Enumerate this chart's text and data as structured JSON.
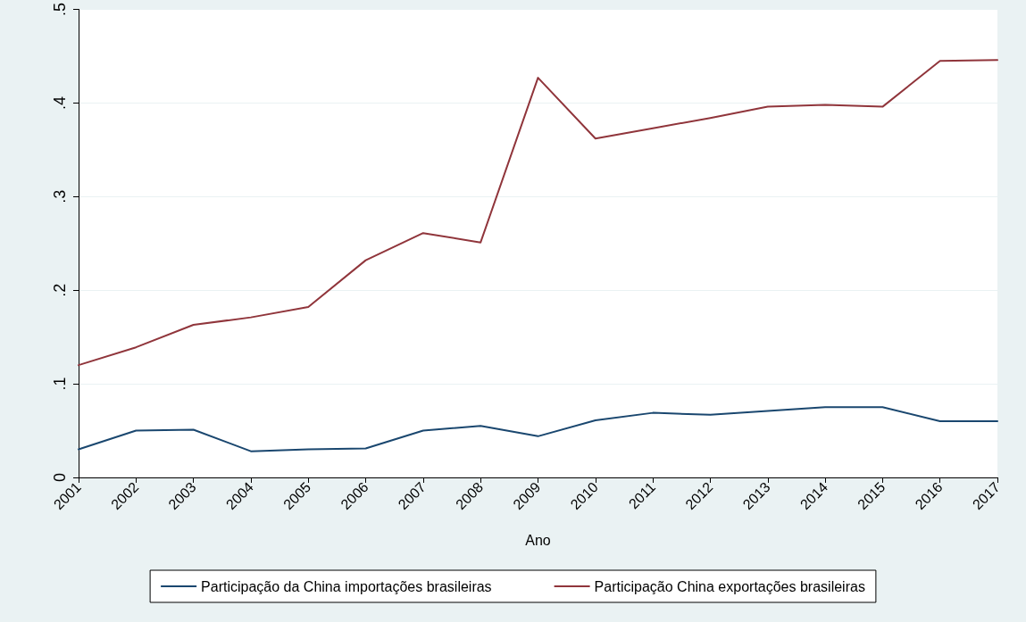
{
  "chart_data": {
    "type": "line",
    "xlabel": "Ano",
    "categories": [
      "2001",
      "2002",
      "2003",
      "2004",
      "2005",
      "2006",
      "2007",
      "2008",
      "2009",
      "2010",
      "2011",
      "2012",
      "2013",
      "2014",
      "2015",
      "2016",
      "2017"
    ],
    "series": [
      {
        "name": "Participação da China importações brasileiras",
        "color": "#1a476f",
        "values": [
          0.03,
          0.05,
          0.051,
          0.028,
          0.03,
          0.031,
          0.05,
          0.055,
          0.044,
          0.061,
          0.069,
          0.067,
          0.071,
          0.075,
          0.075,
          0.06,
          0.06
        ]
      },
      {
        "name": "Participação China exportações brasileiras",
        "color": "#90353b",
        "values": [
          0.12,
          0.139,
          0.163,
          0.171,
          0.182,
          0.232,
          0.261,
          0.251,
          0.427,
          0.362,
          0.373,
          0.384,
          0.396,
          0.398,
          0.396,
          0.445,
          0.446
        ]
      }
    ],
    "ylim": [
      0,
      0.5
    ],
    "yticks": [
      {
        "value": 0,
        "label": "0"
      },
      {
        "value": 0.1,
        "label": ".1"
      },
      {
        "value": 0.2,
        "label": ".2"
      },
      {
        "value": 0.3,
        "label": ".3"
      },
      {
        "value": 0.4,
        "label": ".4"
      },
      {
        "value": 0.5,
        "label": ".5"
      }
    ],
    "grid": "y",
    "legend": "bottom",
    "marker": "none",
    "line_style": "solid"
  }
}
